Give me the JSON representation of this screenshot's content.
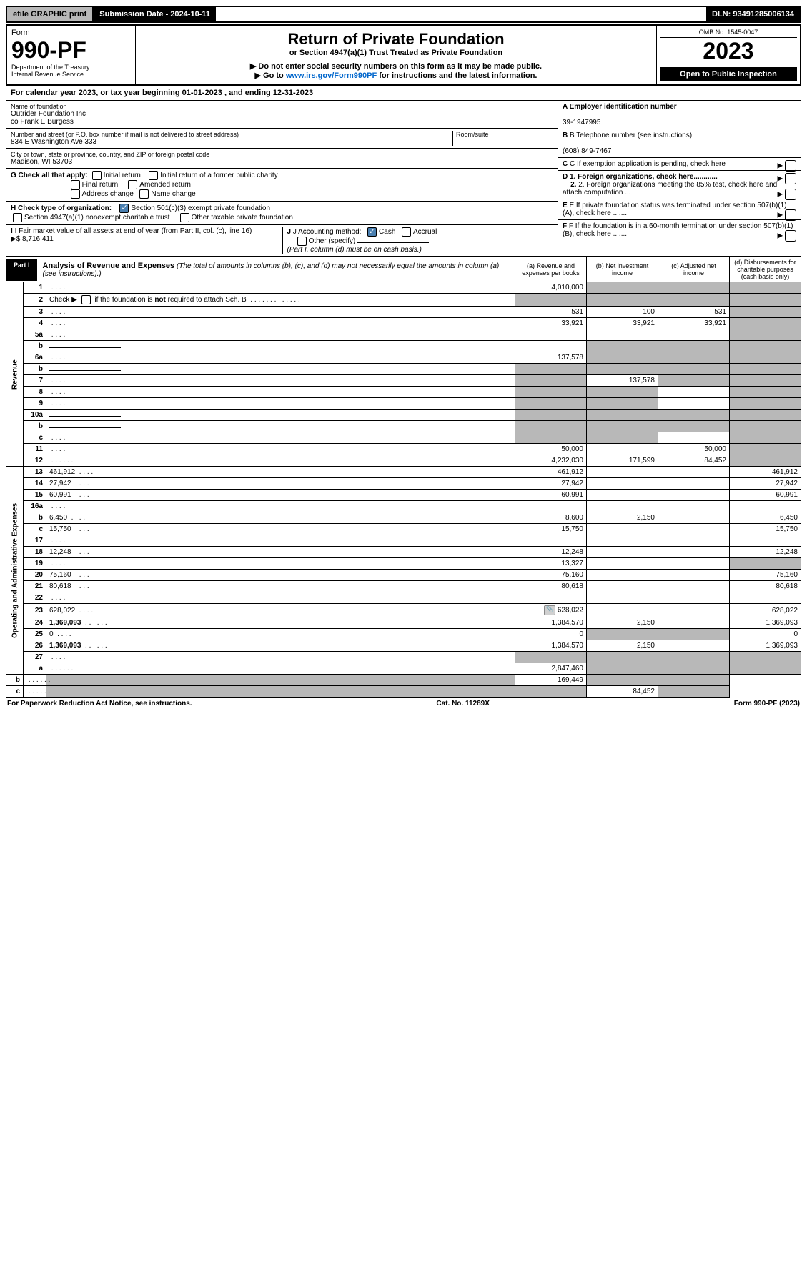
{
  "top_bar": {
    "efile": "efile GRAPHIC print",
    "sub_label": "Submission Date - 2024-10-11",
    "dln": "DLN: 93491285006134"
  },
  "header": {
    "form_word": "Form",
    "form_num": "990-PF",
    "dept": "Department of the Treasury",
    "irs": "Internal Revenue Service",
    "title": "Return of Private Foundation",
    "subtitle": "or Section 4947(a)(1) Trust Treated as Private Foundation",
    "inst1": "▶ Do not enter social security numbers on this form as it may be made public.",
    "inst2_pre": "▶ Go to ",
    "inst2_link": "www.irs.gov/Form990PF",
    "inst2_post": " for instructions and the latest information.",
    "omb": "OMB No. 1545-0047",
    "year": "2023",
    "open": "Open to Public Inspection"
  },
  "cal_year": "For calendar year 2023, or tax year beginning 01-01-2023                       , and ending 12-31-2023",
  "info": {
    "name_label": "Name of foundation",
    "name1": "Outrider Foundation Inc",
    "name2": "co Frank E Burgess",
    "addr_label": "Number and street (or P.O. box number if mail is not delivered to street address)",
    "addr": "834 E Washington Ave 333",
    "room_label": "Room/suite",
    "city_label": "City or town, state or province, country, and ZIP or foreign postal code",
    "city": "Madison, WI  53703",
    "a_label": "A Employer identification number",
    "a_val": "39-1947995",
    "b_label": "B Telephone number (see instructions)",
    "b_val": "(608) 849-7467",
    "c_label": "C If exemption application is pending, check here",
    "g_label": "G Check all that apply:",
    "g_opts": {
      "initial": "Initial return",
      "initial_former": "Initial return of a former public charity",
      "final": "Final return",
      "amended": "Amended return",
      "addr_change": "Address change",
      "name_change": "Name change"
    },
    "d1": "D 1. Foreign organizations, check here............",
    "d2": "2. Foreign organizations meeting the 85% test, check here and attach computation ...",
    "h_label": "H Check type of organization:",
    "h_501c3": "Section 501(c)(3) exempt private foundation",
    "h_4947": "Section 4947(a)(1) nonexempt charitable trust",
    "h_other": "Other taxable private foundation",
    "e_label": "E  If private foundation status was terminated under section 507(b)(1)(A), check here .......",
    "i_label": "I Fair market value of all assets at end of year (from Part II, col. (c), line 16)",
    "i_val": "8,716,411",
    "i_prefix": "▶$",
    "j_label": "J Accounting method:",
    "j_cash": "Cash",
    "j_accrual": "Accrual",
    "j_other": "Other (specify)",
    "j_note": "(Part I, column (d) must be on cash basis.)",
    "f_label": "F  If the foundation is in a 60-month termination under section 507(b)(1)(B), check here ......."
  },
  "part1": {
    "label": "Part I",
    "title": "Analysis of Revenue and Expenses",
    "note": "(The total of amounts in columns (b), (c), and (d) may not necessarily equal the amounts in column (a) (see instructions).)",
    "col_a": "(a)   Revenue and expenses per books",
    "col_b": "(b)   Net investment income",
    "col_c": "(c)   Adjusted net income",
    "col_d": "(d)   Disbursements for charitable purposes (cash basis only)"
  },
  "sections": {
    "revenue": "Revenue",
    "expenses": "Operating and Administrative Expenses"
  },
  "rows": [
    {
      "n": "1",
      "d": "",
      "a": "4,010,000",
      "b": "",
      "c": "",
      "grey_b": true,
      "grey_c": true,
      "grey_d": true
    },
    {
      "n": "2",
      "d": "",
      "a": "",
      "b": "",
      "c": "",
      "grey_a": true,
      "grey_b": true,
      "grey_c": true,
      "grey_d": true,
      "html": true
    },
    {
      "n": "3",
      "d": "",
      "a": "531",
      "b": "100",
      "c": "531",
      "grey_d": true
    },
    {
      "n": "4",
      "d": "",
      "a": "33,921",
      "b": "33,921",
      "c": "33,921",
      "grey_d": true
    },
    {
      "n": "5a",
      "d": "",
      "a": "",
      "b": "",
      "c": "",
      "grey_d": true
    },
    {
      "n": "b",
      "d": "",
      "a": "",
      "b": "",
      "c": "",
      "grey_a": false,
      "grey_b": true,
      "grey_c": true,
      "grey_d": true,
      "inline_field": true
    },
    {
      "n": "6a",
      "d": "",
      "a": "137,578",
      "b": "",
      "c": "",
      "grey_b": true,
      "grey_c": true,
      "grey_d": true
    },
    {
      "n": "b",
      "d": "",
      "a": "",
      "b": "",
      "c": "",
      "grey_a": true,
      "grey_b": true,
      "grey_c": true,
      "grey_d": true,
      "inline_field": true
    },
    {
      "n": "7",
      "d": "",
      "a": "",
      "b": "137,578",
      "c": "",
      "grey_a": true,
      "grey_c": true,
      "grey_d": true
    },
    {
      "n": "8",
      "d": "",
      "a": "",
      "b": "",
      "c": "",
      "grey_a": true,
      "grey_b": true,
      "grey_d": true
    },
    {
      "n": "9",
      "d": "",
      "a": "",
      "b": "",
      "c": "",
      "grey_a": true,
      "grey_b": true,
      "grey_d": true
    },
    {
      "n": "10a",
      "d": "",
      "a": "",
      "b": "",
      "c": "",
      "grey_a": true,
      "grey_b": true,
      "grey_c": true,
      "grey_d": true,
      "inline_field": true
    },
    {
      "n": "b",
      "d": "",
      "a": "",
      "b": "",
      "c": "",
      "grey_a": true,
      "grey_b": true,
      "grey_c": true,
      "grey_d": true,
      "inline_field": true
    },
    {
      "n": "c",
      "d": "",
      "a": "",
      "b": "",
      "c": "",
      "grey_a": true,
      "grey_b": true,
      "grey_d": true
    },
    {
      "n": "11",
      "d": "",
      "a": "50,000",
      "b": "",
      "c": "50,000",
      "grey_d": true
    },
    {
      "n": "12",
      "d": "",
      "a": "4,232,030",
      "b": "171,599",
      "c": "84,452",
      "bold": true,
      "grey_d": true
    },
    {
      "n": "13",
      "d": "461,912",
      "a": "461,912",
      "b": "",
      "c": ""
    },
    {
      "n": "14",
      "d": "27,942",
      "a": "27,942",
      "b": "",
      "c": ""
    },
    {
      "n": "15",
      "d": "60,991",
      "a": "60,991",
      "b": "",
      "c": ""
    },
    {
      "n": "16a",
      "d": "",
      "a": "",
      "b": "",
      "c": ""
    },
    {
      "n": "b",
      "d": "6,450",
      "a": "8,600",
      "b": "2,150",
      "c": ""
    },
    {
      "n": "c",
      "d": "15,750",
      "a": "15,750",
      "b": "",
      "c": ""
    },
    {
      "n": "17",
      "d": "",
      "a": "",
      "b": "",
      "c": ""
    },
    {
      "n": "18",
      "d": "12,248",
      "a": "12,248",
      "b": "",
      "c": ""
    },
    {
      "n": "19",
      "d": "",
      "a": "13,327",
      "b": "",
      "c": "",
      "grey_d": true
    },
    {
      "n": "20",
      "d": "75,160",
      "a": "75,160",
      "b": "",
      "c": ""
    },
    {
      "n": "21",
      "d": "80,618",
      "a": "80,618",
      "b": "",
      "c": ""
    },
    {
      "n": "22",
      "d": "",
      "a": "",
      "b": "",
      "c": ""
    },
    {
      "n": "23",
      "d": "628,022",
      "a": "628,022",
      "b": "",
      "c": "",
      "attach": true
    },
    {
      "n": "24",
      "d": "1,369,093",
      "a": "1,384,570",
      "b": "2,150",
      "c": "",
      "bold": true
    },
    {
      "n": "25",
      "d": "0",
      "a": "0",
      "b": "",
      "c": "",
      "grey_b": true,
      "grey_c": true
    },
    {
      "n": "26",
      "d": "1,369,093",
      "a": "1,384,570",
      "b": "2,150",
      "c": "",
      "bold": true
    },
    {
      "n": "27",
      "d": "",
      "a": "",
      "b": "",
      "c": "",
      "grey_a": true,
      "grey_b": true,
      "grey_c": true,
      "grey_d": true
    },
    {
      "n": "a",
      "d": "",
      "a": "2,847,460",
      "b": "",
      "c": "",
      "bold": true,
      "grey_b": true,
      "grey_c": true,
      "grey_d": true
    },
    {
      "n": "b",
      "d": "",
      "a": "",
      "b": "169,449",
      "c": "",
      "bold": true,
      "grey_a": true,
      "grey_c": true,
      "grey_d": true
    },
    {
      "n": "c",
      "d": "",
      "a": "",
      "b": "",
      "c": "84,452",
      "bold": true,
      "grey_a": true,
      "grey_b": true,
      "grey_d": true
    }
  ],
  "footer": {
    "left": "For Paperwork Reduction Act Notice, see instructions.",
    "mid": "Cat. No. 11289X",
    "right": "Form 990-PF (2023)"
  }
}
